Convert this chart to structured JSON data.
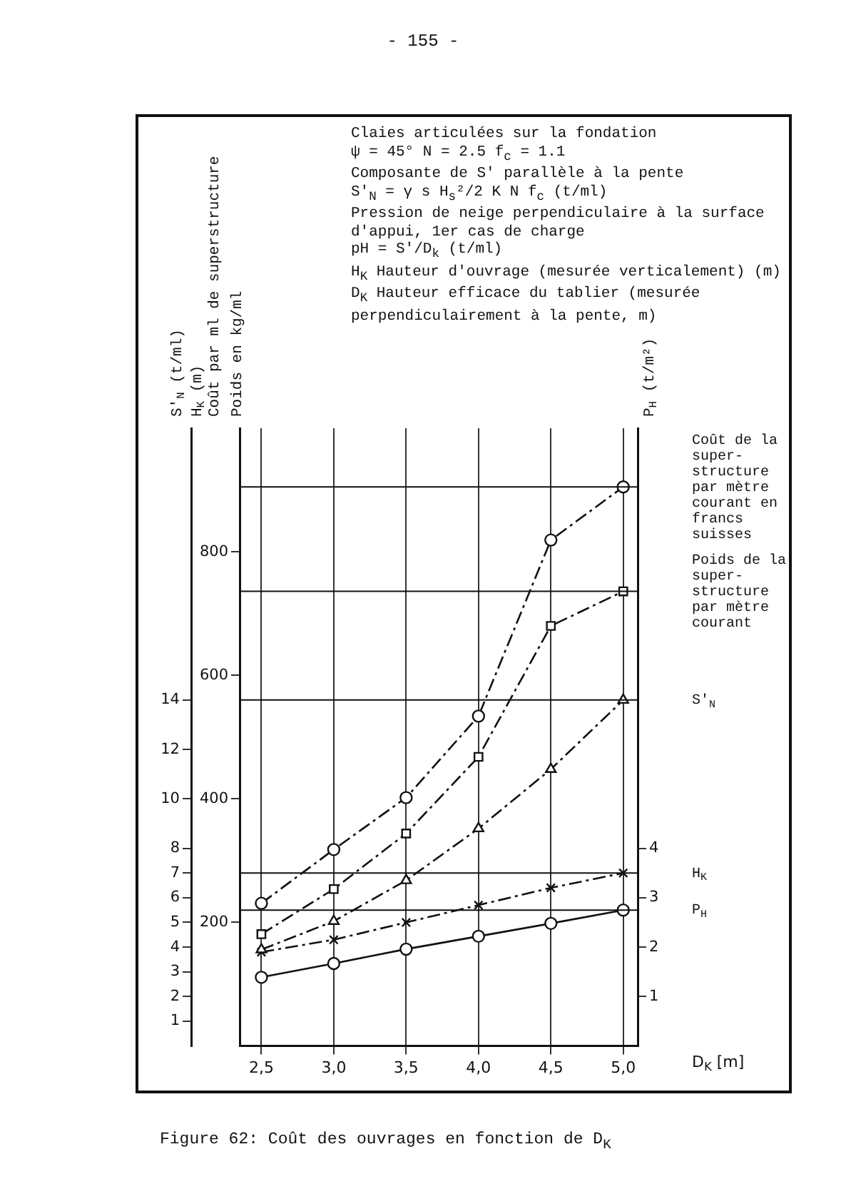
{
  "chart_data": {
    "type": "line",
    "title": "Figure 62: Coût des ouvrages en fonction de D$_{K}$",
    "annotations": [
      "- 155 -",
      "Poids en kg/ml",
      "H$_{K}$ (m)",
      "Claies articulées sur la fondation",
      "ψ = 45°   N = 2.5   f$_{c}$ = 1.1",
      "Composante de S' parallèle à la pente",
      "S'$_{N}$ = γ s H$_{s}$²/2  K N f$_{c}$  (t/ml)",
      "Pression de neige perpendiculaire à la surface d'appui, 1er cas de charge",
      "pH = S'/D$_{k}$   (t/ml)",
      "H$_{K}$ Hauteur d'ouvrage (mesurée verticalement) (m)",
      "D$_{K}$ Hauteur efficace du tablier (mesurée perpendiculairement à la pente, m)"
    ],
    "xlabel": "D$_{K}$ [m]",
    "ylabel": "Coût par ml de superstructure",
    "y2label": "S'$_{N}$ (t/ml)",
    "y3label": "P$_{H}$ (t/m²)",
    "x": [
      2.5,
      3.0,
      3.5,
      4.0,
      4.5,
      5.0
    ],
    "xlim": [
      2.35,
      5.1
    ],
    "xticks": [
      {
        "value": 2.5,
        "label": "2,5"
      },
      {
        "value": 3.0,
        "label": "3,0"
      },
      {
        "value": 3.5,
        "label": "3,5"
      },
      {
        "value": 4.0,
        "label": "4,0"
      },
      {
        "value": 4.5,
        "label": "4,5"
      },
      {
        "value": 5.0,
        "label": "5,0"
      }
    ],
    "ylim": [
      0,
      1000
    ],
    "yticks": [
      200,
      400,
      600,
      800
    ],
    "y2lim": [
      0,
      25
    ],
    "y2ticks": [
      1,
      2,
      3,
      4,
      5,
      6,
      7,
      8,
      10,
      12,
      14
    ],
    "y3lim": [
      0,
      12.5
    ],
    "y3ticks": [
      1,
      2,
      3,
      4
    ],
    "grid": "x",
    "series": [
      {
        "name": "Coût de la super-structure par mètre courant en francs suisses",
        "color": "#111111",
        "marker": "circle",
        "line_style": "dashed",
        "values": [
          231,
          318,
          402,
          534,
          819,
          905
        ]
      },
      {
        "name": "Poids de la super-structure par mètre courant",
        "color": "#111111",
        "marker": "square",
        "line_style": "dashed",
        "values": [
          181,
          254,
          344,
          468,
          680,
          736
        ]
      },
      {
        "name": "S'$_{N}$",
        "color": "#111111",
        "marker": "triangle",
        "line_style": "dashed",
        "axis": "y2",
        "values": [
          3.9,
          5.05,
          6.7,
          8.8,
          11.2,
          14
        ]
      },
      {
        "name": "H$_{K}$",
        "color": "#111111",
        "marker": "cross",
        "line_style": "dashed",
        "axis": "y2",
        "values": [
          3.8,
          4.3,
          5.0,
          5.7,
          6.4,
          7
        ]
      },
      {
        "name": "P$_{H}$",
        "color": "#111111",
        "marker": "circle",
        "line_style": "solid",
        "axis": "y3",
        "values": [
          1.39,
          1.67,
          1.96,
          2.22,
          2.48,
          2.75
        ]
      }
    ],
    "ref_lines": [
      {
        "axis": "y",
        "value": 905
      },
      {
        "axis": "y",
        "value": 736
      },
      {
        "axis": "y2",
        "value": 14
      },
      {
        "axis": "y2",
        "value": 7
      },
      {
        "axis": "y3",
        "value": 2.75
      }
    ]
  }
}
